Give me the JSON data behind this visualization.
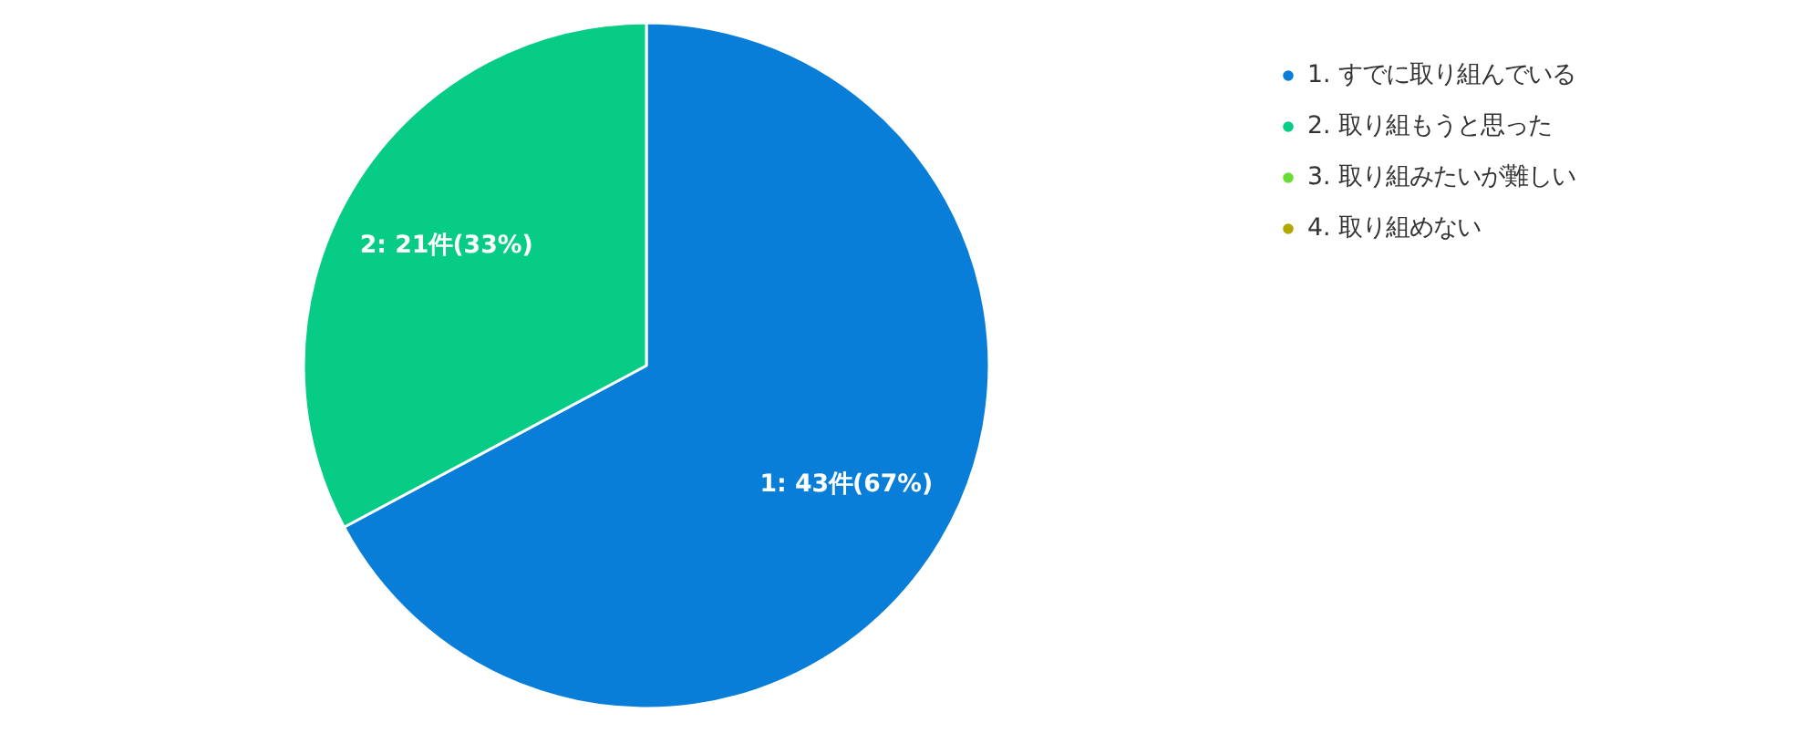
{
  "chart_data": {
    "type": "pie",
    "categories": [
      "1. すでに取り組んでいる",
      "2. 取り組もうと思った",
      "3. 取り組みたいが難しい",
      "4. 取り組めない"
    ],
    "values": [
      43,
      21,
      0,
      0
    ],
    "colors": [
      "#087ed9",
      "#06cc86",
      "#66dd33",
      "#b0a800"
    ],
    "value_labels": [
      "1: 43件(67%)",
      "2: 21件(33%)",
      null,
      null
    ],
    "legend": "top right"
  }
}
